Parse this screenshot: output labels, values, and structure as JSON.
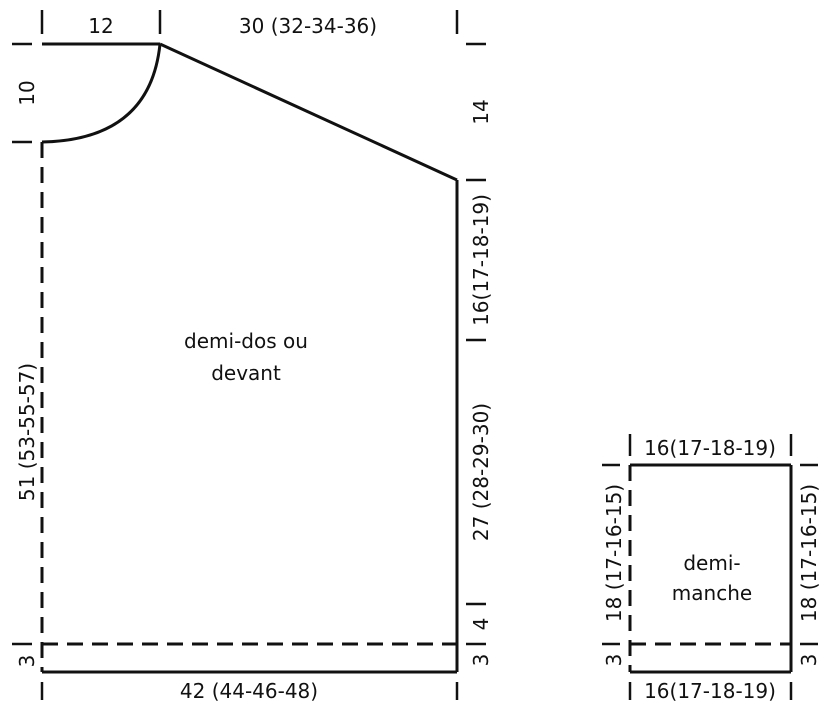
{
  "body": {
    "label_line1": "demi-dos ou",
    "label_line2": "devant",
    "top_neck_width": "12",
    "top_shoulder_width": "30 (32-34-36)",
    "neck_depth": "10",
    "shoulder_drop": "14",
    "armhole_depth": "16(17-18-19)",
    "side_length": "27 (28-29-30)",
    "rib_right": "4",
    "hem_right": "3",
    "hem_left": "3",
    "total_length": "51 (53-55-57)",
    "bottom_width": "42 (44-46-48)"
  },
  "sleeve": {
    "label_line1": "demi-",
    "label_line2": "manche",
    "top_width": "16(17-18-19)",
    "bottom_width": "16(17-18-19)",
    "left_length": "18 (17-16-15)",
    "right_length": "18 (17-16-15)",
    "left_hem": "3",
    "right_hem": "3"
  }
}
